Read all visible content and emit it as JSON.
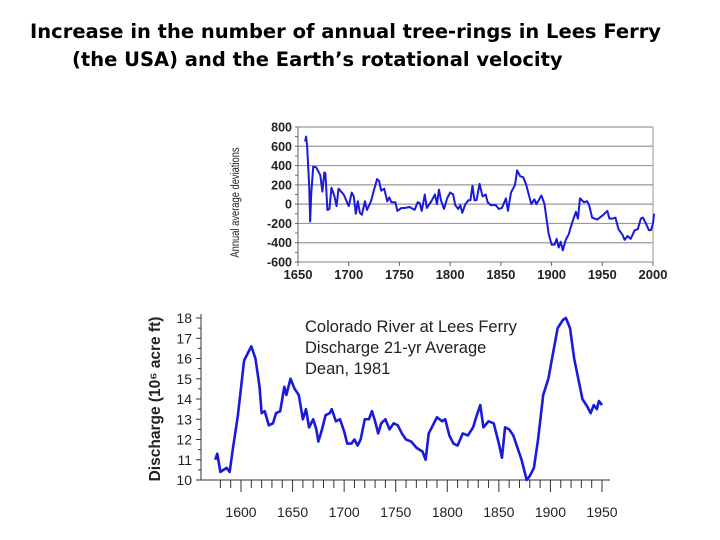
{
  "title": {
    "line1": "Increase in the number of annual tree-rings in Lees Ferry",
    "line2": "(the USA) and the Earth’s rotational velocity"
  },
  "chart_data": [
    {
      "type": "line",
      "title": "",
      "xlabel": "",
      "ylabel": "Annual average deviations",
      "xlim": [
        1650,
        2000
      ],
      "ylim": [
        -600,
        800
      ],
      "xticks": [
        "1650",
        "1700",
        "1750",
        "1800",
        "1850",
        "1900",
        "1950",
        "2000"
      ],
      "yticks": [
        "800",
        "600",
        "400",
        "200",
        "0",
        "-200",
        "-400",
        "-600"
      ],
      "grid": true,
      "color": "#1a1adc",
      "x": [
        1657,
        1658,
        1659,
        1661,
        1662,
        1663,
        1665,
        1668,
        1672,
        1674,
        1676,
        1677,
        1679,
        1681,
        1683,
        1686,
        1688,
        1690,
        1695,
        1700,
        1703,
        1705,
        1707,
        1709,
        1711,
        1713,
        1716,
        1718,
        1722,
        1725,
        1728,
        1730,
        1732,
        1735,
        1738,
        1740,
        1742,
        1746,
        1748,
        1752,
        1755,
        1760,
        1765,
        1768,
        1770,
        1772,
        1775,
        1777,
        1782,
        1785,
        1787,
        1789,
        1791,
        1794,
        1797,
        1800,
        1803,
        1805,
        1808,
        1810,
        1812,
        1815,
        1818,
        1820,
        1822,
        1824,
        1826,
        1829,
        1832,
        1835,
        1837,
        1840,
        1845,
        1848,
        1851,
        1855,
        1857,
        1860,
        1864,
        1866,
        1869,
        1872,
        1875,
        1878,
        1880,
        1883,
        1885,
        1890,
        1893,
        1897,
        1900,
        1903,
        1905,
        1907,
        1909,
        1911,
        1914,
        1917,
        1920,
        1924,
        1926,
        1928,
        1932,
        1935,
        1937,
        1940,
        1945,
        1950,
        1955,
        1957,
        1960,
        1963,
        1966,
        1970,
        1972,
        1975,
        1978,
        1982,
        1985,
        1988,
        1990,
        1993,
        1996,
        1998,
        2000,
        2001
      ],
      "y": [
        650,
        700,
        600,
        200,
        -180,
        100,
        390,
        380,
        300,
        130,
        330,
        320,
        -60,
        -50,
        170,
        80,
        -20,
        160,
        100,
        -20,
        120,
        80,
        -100,
        30,
        -90,
        -110,
        30,
        -60,
        30,
        150,
        260,
        240,
        140,
        160,
        30,
        70,
        20,
        20,
        -70,
        -40,
        -40,
        -30,
        -60,
        20,
        10,
        -70,
        100,
        -40,
        40,
        100,
        0,
        150,
        40,
        -50,
        60,
        120,
        100,
        -10,
        -50,
        -10,
        -90,
        0,
        40,
        40,
        190,
        40,
        40,
        210,
        80,
        100,
        20,
        -10,
        -10,
        -50,
        -40,
        60,
        -70,
        120,
        200,
        350,
        290,
        280,
        200,
        80,
        0,
        50,
        0,
        90,
        0,
        -300,
        -420,
        -420,
        -360,
        -450,
        -390,
        -480,
        -370,
        -310,
        -200,
        -80,
        -150,
        60,
        20,
        30,
        -10,
        -140,
        -160,
        -120,
        -70,
        -150,
        -150,
        -140,
        -260,
        -320,
        -370,
        -330,
        -360,
        -270,
        -260,
        -150,
        -140,
        -200,
        -270,
        -270,
        -200,
        -100
      ]
    },
    {
      "type": "line",
      "title": "",
      "annotation": [
        "Colorado River at Lees Ferry",
        "Discharge 21-yr Average",
        "Dean, 1981"
      ],
      "xlabel": "",
      "ylabel": "Discharge (10⁶ acre ft)",
      "xlim": [
        1560,
        1960
      ],
      "ylim": [
        10,
        18
      ],
      "xticks": [
        "1600",
        "1650",
        "1700",
        "1750",
        "1800",
        "1850",
        "1900",
        "1950"
      ],
      "yticks": [
        "18",
        "17",
        "16",
        "15",
        "14",
        "13",
        "12",
        "11",
        "10"
      ],
      "grid": false,
      "color": "#1a1adc",
      "x": [
        1575,
        1577,
        1580,
        1583,
        1586,
        1589,
        1592,
        1597,
        1603,
        1608,
        1610,
        1614,
        1618,
        1620,
        1623,
        1627,
        1631,
        1634,
        1638,
        1642,
        1644,
        1648,
        1652,
        1656,
        1660,
        1663,
        1666,
        1670,
        1673,
        1675,
        1678,
        1682,
        1686,
        1688,
        1692,
        1696,
        1700,
        1703,
        1707,
        1710,
        1713,
        1716,
        1720,
        1724,
        1727,
        1730,
        1733,
        1736,
        1740,
        1744,
        1748,
        1752,
        1756,
        1760,
        1765,
        1770,
        1776,
        1779,
        1782,
        1786,
        1790,
        1795,
        1798,
        1802,
        1806,
        1810,
        1815,
        1820,
        1825,
        1828,
        1832,
        1835,
        1840,
        1845,
        1850,
        1853,
        1856,
        1860,
        1864,
        1868,
        1872,
        1877,
        1880,
        1884,
        1888,
        1893,
        1898,
        1903,
        1907,
        1912,
        1915,
        1919,
        1923,
        1927,
        1931,
        1936,
        1939,
        1942,
        1945,
        1947,
        1950
      ],
      "y": [
        11,
        11.3,
        10.4,
        10.5,
        10.6,
        10.4,
        11.5,
        13.2,
        15.9,
        16.4,
        16.6,
        16,
        14.6,
        13.3,
        13.4,
        12.7,
        12.8,
        13.3,
        13.4,
        14.6,
        14.2,
        15,
        14.5,
        14.2,
        13,
        13.5,
        12.6,
        13,
        12.5,
        11.9,
        12.4,
        13.2,
        13.3,
        13.5,
        12.9,
        13,
        12.4,
        11.8,
        11.8,
        12,
        11.7,
        12,
        13,
        13,
        13.4,
        12.9,
        12.3,
        12.8,
        13,
        12.5,
        12.8,
        12.7,
        12.3,
        12,
        11.9,
        11.6,
        11.4,
        11,
        12.3,
        12.7,
        13.1,
        12.9,
        13,
        12.2,
        11.8,
        11.7,
        12.3,
        12.2,
        12.6,
        13.1,
        13.7,
        12.6,
        12.9,
        12.8,
        11.8,
        11.1,
        12.6,
        12.5,
        12.2,
        11.6,
        11,
        10,
        10.2,
        10.6,
        12,
        14.2,
        15,
        16.4,
        17.5,
        17.9,
        18,
        17.5,
        16,
        15,
        14,
        13.6,
        13.3,
        13.7,
        13.5,
        13.9,
        13.7
      ]
    }
  ]
}
